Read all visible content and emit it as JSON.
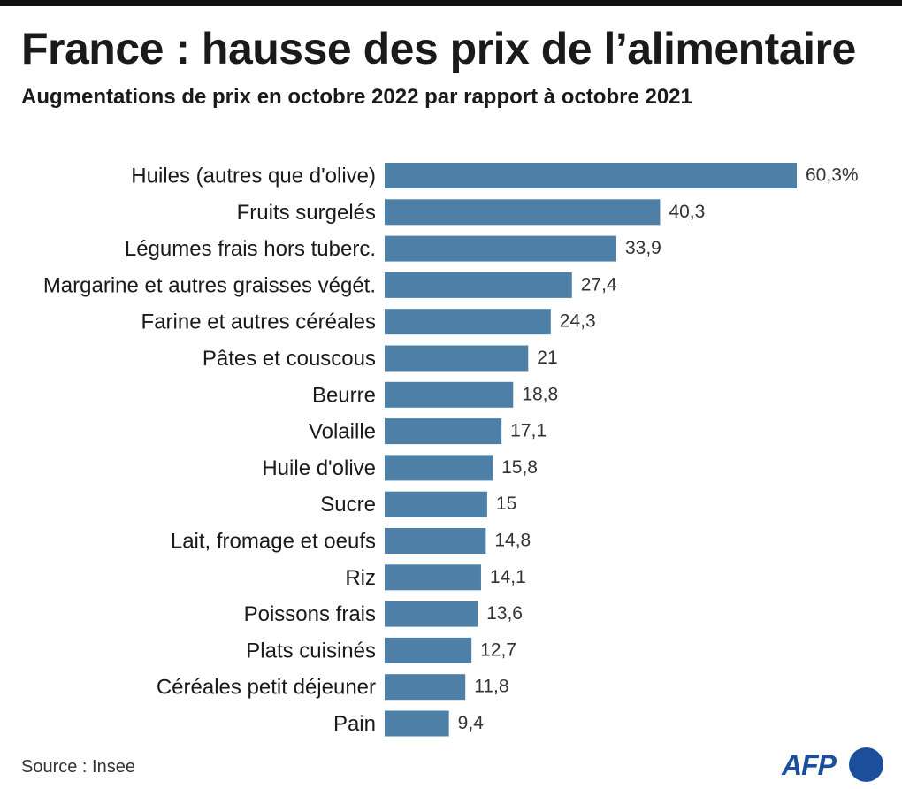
{
  "header": {
    "title": "France : hausse des prix de l’alimentaire",
    "subtitle": "Augmentations de prix en octobre 2022 par rapport à octobre 2021"
  },
  "footer": {
    "source": "Source : Insee",
    "logo_text": "AFP"
  },
  "colors": {
    "bar": "#4e7fa6",
    "logo": "#1b4f9c"
  },
  "chart_data": {
    "type": "bar",
    "orientation": "horizontal",
    "title": "France : hausse des prix de l’alimentaire",
    "subtitle": "Augmentations de prix en octobre 2022 par rapport à octobre 2021",
    "unit": "%",
    "categories": [
      "Huiles (autres que d'olive)",
      "Fruits surgelés",
      "Légumes frais hors tuberc.",
      "Margarine et autres graisses végét.",
      "Farine et autres céréales",
      "Pâtes et couscous",
      "Beurre",
      "Volaille",
      "Huile d'olive",
      "Sucre",
      "Lait, fromage et oeufs",
      "Riz",
      "Poissons frais",
      "Plats cuisinés",
      "Céréales petit déjeuner",
      "Pain"
    ],
    "values": [
      60.3,
      40.3,
      33.9,
      27.4,
      24.3,
      21,
      18.8,
      17.1,
      15.8,
      15,
      14.8,
      14.1,
      13.6,
      12.7,
      11.8,
      9.4
    ],
    "value_labels": [
      "60,3%",
      "40,3",
      "33,9",
      "27,4",
      "24,3",
      "21",
      "18,8",
      "17,1",
      "15,8",
      "15",
      "14,8",
      "14,1",
      "13,6",
      "12,7",
      "11,8",
      "9,4"
    ],
    "xlim": [
      0,
      60.3
    ],
    "grid": false,
    "legend": "none"
  }
}
